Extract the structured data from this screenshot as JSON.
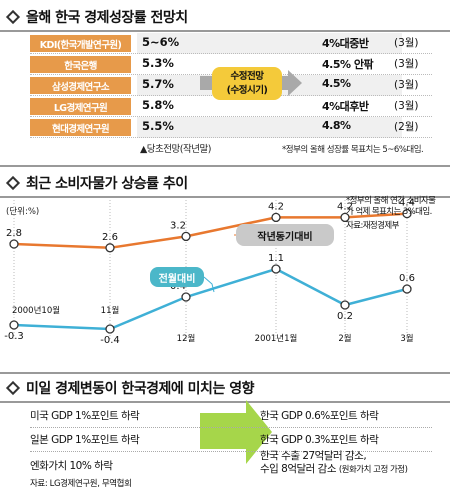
{
  "section1": {
    "title": "올해 한국 경제성장률 전망치",
    "rows": [
      {
        "institution": "KDI(한국개발연구원)",
        "previous": "5~6%",
        "revised": "4%대중반",
        "time": "(3월)"
      },
      {
        "institution": "한국은행",
        "previous": "5.3%",
        "revised": "4.5% 안팎",
        "time": "(3월)"
      },
      {
        "institution": "삼성경제연구소",
        "previous": "5.7%",
        "revised": "4.5%",
        "time": "(3월)"
      },
      {
        "institution": "LG경제연구원",
        "previous": "5.8%",
        "revised": "4%대후반",
        "time": "(3월)"
      },
      {
        "institution": "현대경제연구원",
        "previous": "5.5%",
        "revised": "4.8%",
        "time": "(2월)"
      }
    ],
    "revision_label_1": "수정전망",
    "revision_label_2": "(수정시기)",
    "initial_label": "▲당초전망(작년말)",
    "footnote": "*정부의 올해 성장률 목표치는 5~6%대임."
  },
  "chart_data": {
    "type": "line",
    "title": "최근 소비자물가 상승률 추이",
    "unit_label": "(단위:%)",
    "categories": [
      "2000년10월",
      "11월",
      "12월",
      "2001년1월",
      "2월",
      "3월"
    ],
    "series": [
      {
        "name": "작년동기대비",
        "color": "#e8782f",
        "values": [
          2.8,
          2.6,
          3.2,
          4.2,
          4.2,
          4.4
        ]
      },
      {
        "name": "전월대비",
        "color": "#3fb0d6",
        "values": [
          -0.3,
          -0.4,
          0.4,
          1.1,
          0.2,
          0.6
        ]
      }
    ],
    "note": "*정부의 올해 연간 소비자물가 억제 목표치는 3%대임.",
    "source": "자료:재정경제부"
  },
  "section3": {
    "title": "미일 경제변동이 한국경제에 미치는 영향",
    "rows": [
      {
        "cause": "미국 GDP 1%포인트 하락",
        "effect_1": "한국 GDP 0.6%포인트 하락",
        "effect_2": "",
        "effect_note": ""
      },
      {
        "cause": "일본 GDP 1%포인트 하락",
        "effect_1": "한국 GDP 0.3%포인트 하락",
        "effect_2": "",
        "effect_note": ""
      },
      {
        "cause": "엔화가치 10% 하락",
        "effect_1": "한국 수출 27억달러 감소,",
        "effect_2": "수입 8억달러 감소",
        "effect_note": "(원화가치 고정 가정)"
      }
    ],
    "source": "자료: LG경제연구원, 무역협회"
  },
  "colors": {
    "orange_line": "#e8782f",
    "blue_line": "#3fb0d6",
    "institution_bg": "#e79a4a",
    "revision_bg": "#f4ca3a",
    "green_arrow": "#a6d64a"
  }
}
